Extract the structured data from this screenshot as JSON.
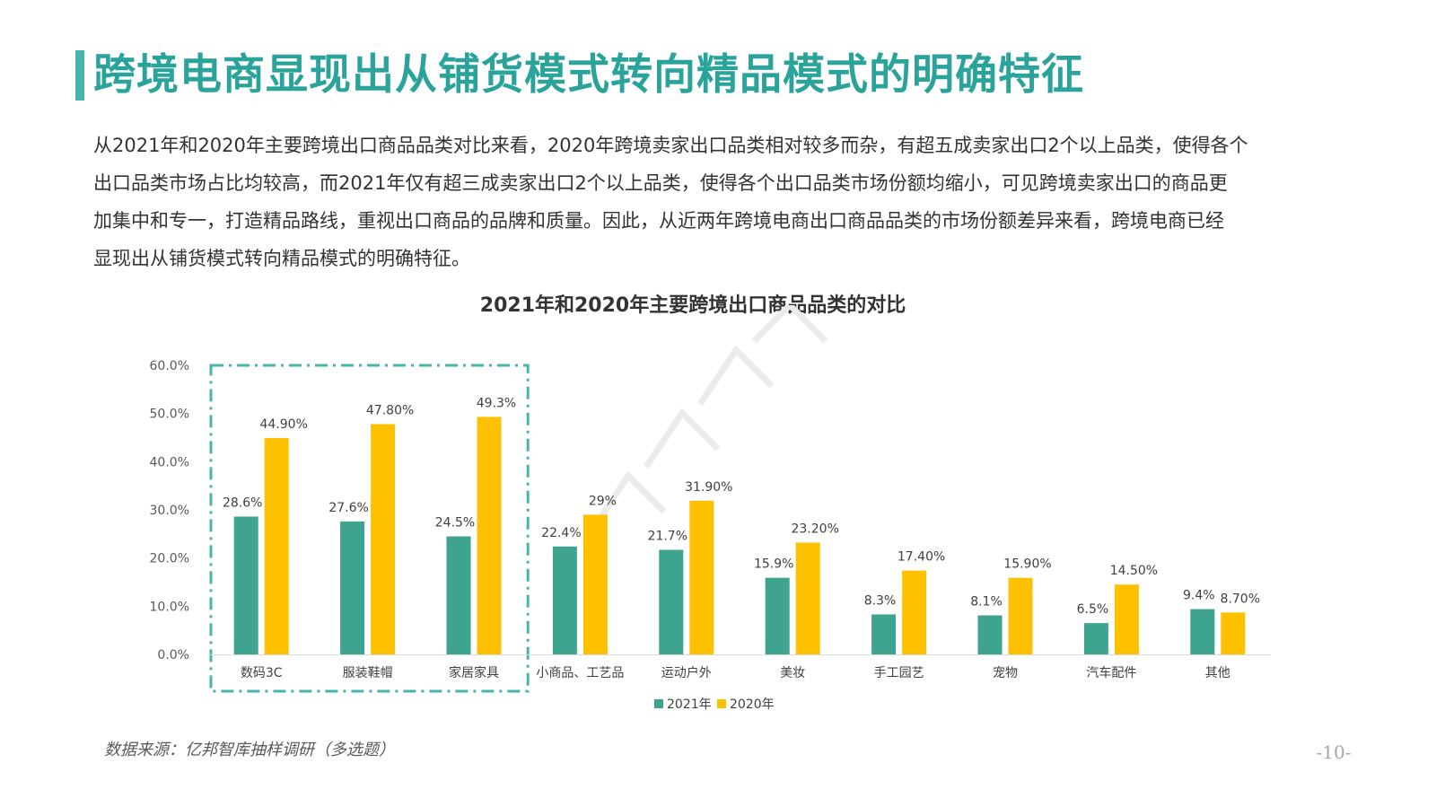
{
  "slide": {
    "title": "跨境电商显现出从铺货模式转向精品模式的明确特征",
    "intro_lines": [
      "从2021年和2020年主要跨境出口商品品类对比来看，2020年跨境卖家出口品类相对较多而杂，有超五成卖家出口2个以上品类，使得各个",
      "出口品类市场占比均较高，而2021年仅有超三成卖家出口2个以上品类，使得各个出口品类市场份额均缩小，可见跨境卖家出口的商品更",
      "加集中和专一，打造精品路线，重视出口商品的品牌和质量。因此，从近两年跨境电商出口商品品类的市场份额差异来看，跨境电商已经",
      "显现出从铺货模式转向精品模式的明确特征。"
    ],
    "source": "数据来源：亿邦智库抽样调研（多选题）",
    "page_number": "-10-",
    "colors": {
      "accent": "#48b5ad",
      "title_text": "#2aa39a",
      "series_2021": "#3fa48f",
      "series_2020": "#ffc000",
      "highlight_box": "#48b5ad"
    }
  },
  "chart_data": {
    "type": "bar",
    "title": "2021年和2020年主要跨境出口商品品类的对比",
    "categories": [
      "数码3C",
      "服装鞋帽",
      "家居家具",
      "小商品、工艺品",
      "运动户外",
      "美妆",
      "手工园艺",
      "宠物",
      "汽车配件",
      "其他"
    ],
    "series": [
      {
        "name": "2021年",
        "values": [
          28.6,
          27.6,
          24.5,
          22.4,
          21.7,
          15.9,
          8.3,
          8.1,
          6.5,
          9.4
        ],
        "labels": [
          "28.6%",
          "27.6%",
          "24.5%",
          "22.4%",
          "21.7%",
          "15.9%",
          "8.3%",
          "8.1%",
          "6.5%",
          "9.4%"
        ]
      },
      {
        "name": "2020年",
        "values": [
          44.9,
          47.8,
          49.3,
          29,
          31.9,
          23.2,
          17.4,
          15.9,
          14.5,
          8.7
        ],
        "labels": [
          "44.90%",
          "47.80%",
          "49.3%",
          "29%",
          "31.90%",
          "23.20%",
          "17.40%",
          "15.90%",
          "14.50%",
          "8.70%"
        ]
      }
    ],
    "y_ticks": [
      "0.0%",
      "10.0%",
      "20.0%",
      "30.0%",
      "40.0%",
      "50.0%",
      "60.0%"
    ],
    "ylim": [
      0,
      60
    ],
    "grid": false,
    "legend": "bottom",
    "highlight": {
      "first": 0,
      "last": 2
    }
  }
}
